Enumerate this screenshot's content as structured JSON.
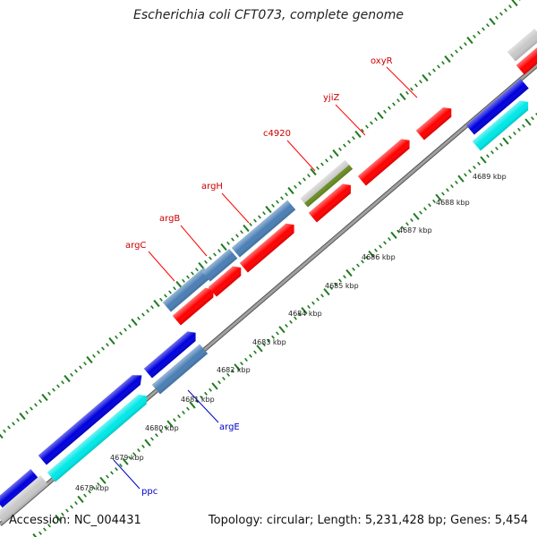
{
  "title": "Escherichia coli CFT073, complete genome",
  "footer": {
    "accession": "Accession: NC_004431",
    "summary": "Topology: circular; Length: 5,231,428 bp; Genes: 5,454"
  },
  "colors": {
    "dark_blue": "#0000dd",
    "steel_blue": "#4b7fb5",
    "red": "#ff0000",
    "cyan": "#00e8e8",
    "olive": "#6b8e23",
    "grey": "#c8c8c8",
    "backbone": "#808080",
    "tick_green": "#1e7b1e",
    "forward_label": "#cc0000",
    "reverse_label": "#0000cc"
  },
  "kbp_labels": [
    "4678 kbp",
    "4679 kbp",
    "4680 kbp",
    "4681 kbp",
    "4682 kbp",
    "4683 kbp",
    "4684 kbp",
    "4685 kbp",
    "4686 kbp",
    "4687 kbp",
    "4688 kbp",
    "4689 kbp"
  ],
  "gene_labels_forward": [
    "argC",
    "argB",
    "argH",
    "c4920",
    "yjiZ",
    "oxyR"
  ],
  "gene_labels_reverse": [
    "argE",
    "ppc"
  ]
}
